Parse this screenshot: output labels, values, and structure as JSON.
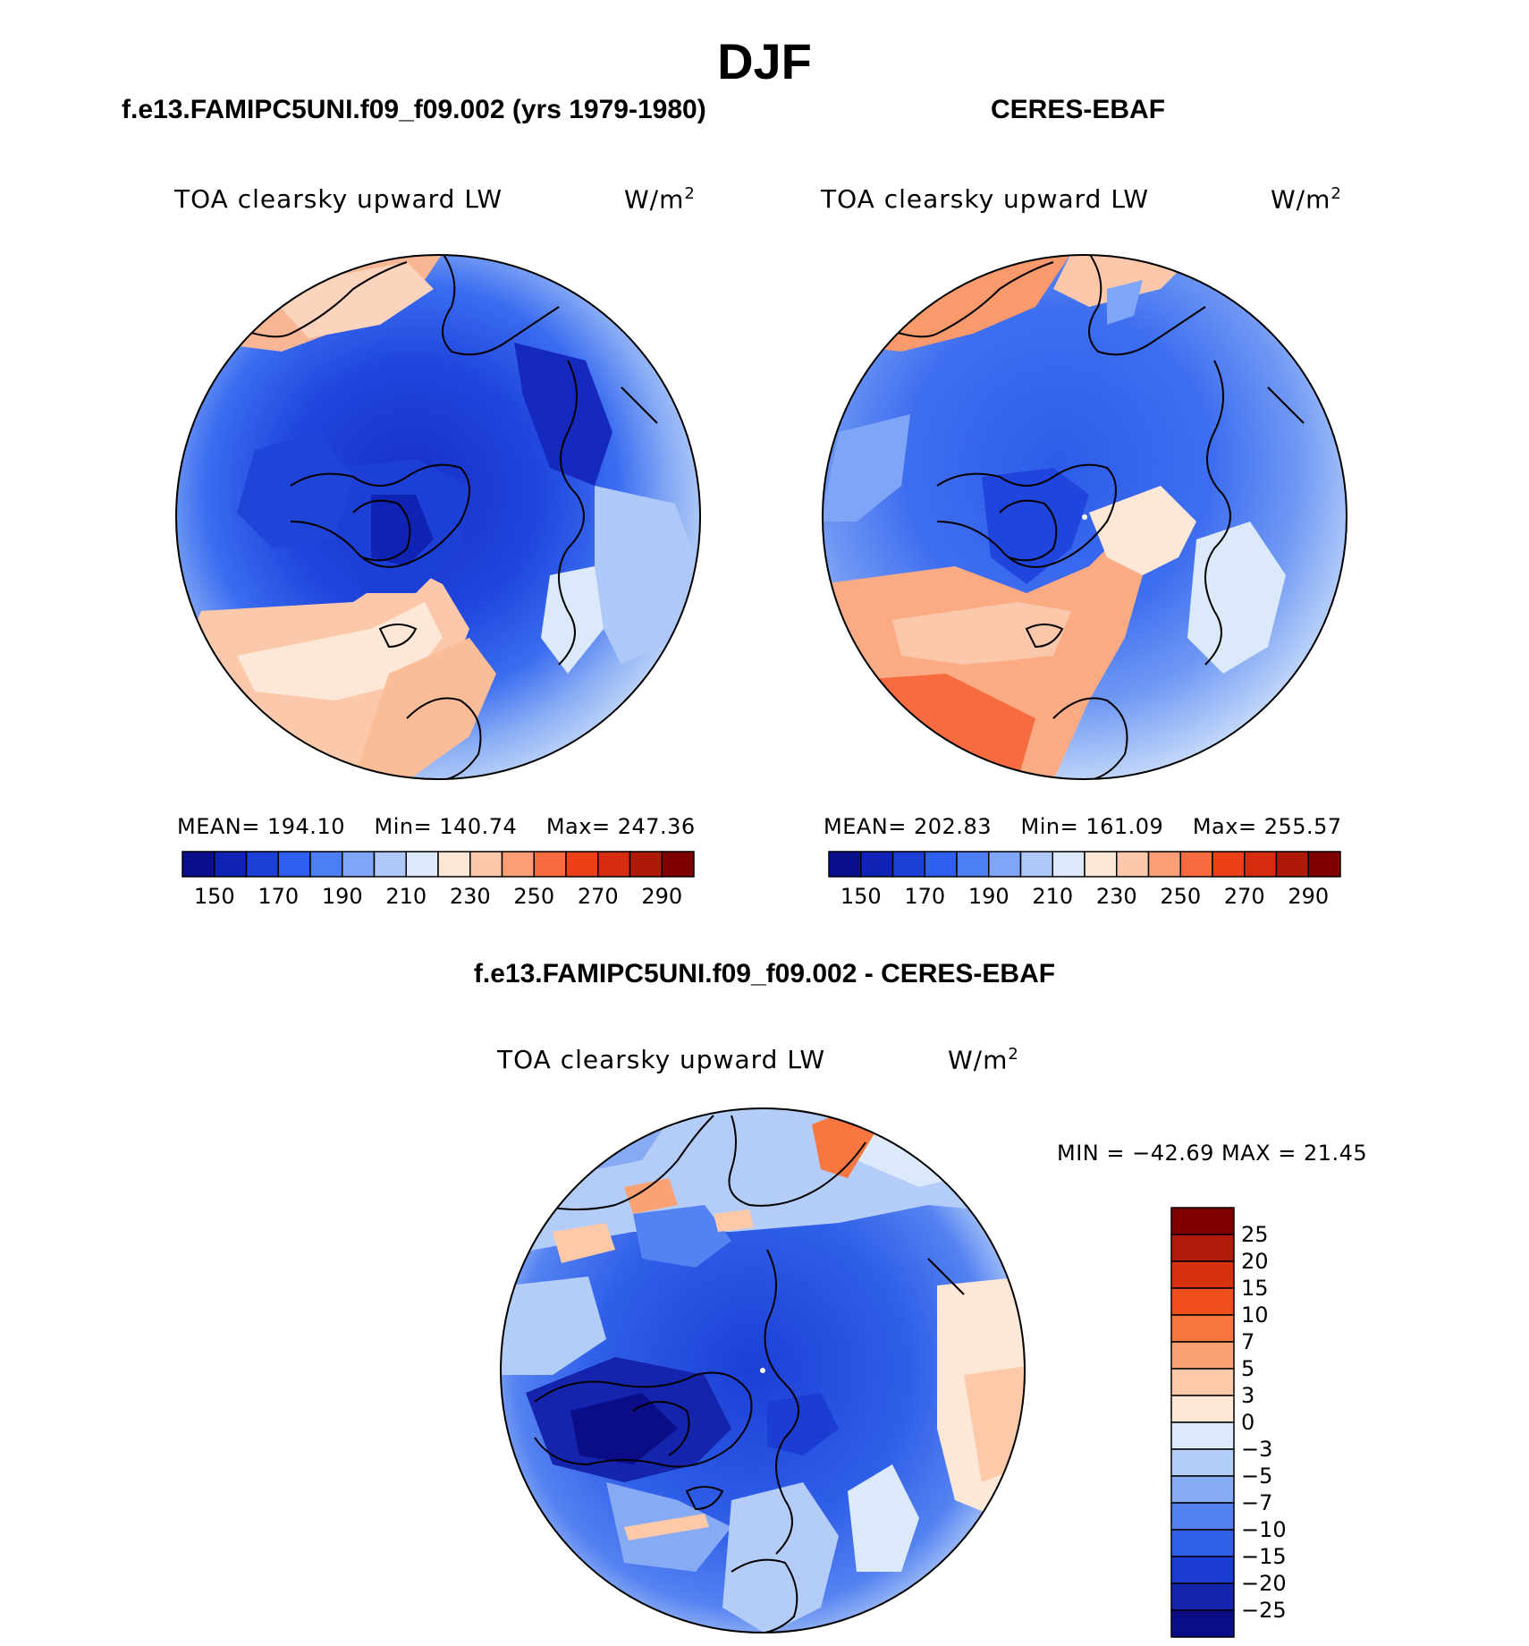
{
  "figure": {
    "season": "DJF",
    "left_title": "f.e13.FAMIPC5UNI.f09_f09.002 (yrs 1979-1980)",
    "right_title": "CERES-EBAF",
    "diff_title": "f.e13.FAMIPC5UNI.f09_f09.002 - CERES-EBAF"
  },
  "panels": [
    {
      "variable": "TOA clearsky upward LW",
      "units_base": "W/m",
      "units_exp": "2",
      "mean_label": "MEAN=",
      "mean_value": "194.10",
      "min_label": "Min=",
      "min_value": "140.74",
      "max_label": "Max=",
      "max_value": "247.36"
    },
    {
      "variable": "TOA clearsky upward LW",
      "units_base": "W/m",
      "units_exp": "2",
      "mean_label": "MEAN=",
      "mean_value": "202.83",
      "min_label": "Min=",
      "min_value": "161.09",
      "max_label": "Max=",
      "max_value": "255.57"
    }
  ],
  "diff_panel": {
    "variable": "TOA clearsky upward LW",
    "units_base": "W/m",
    "units_exp": "2",
    "minmax_text": "MIN = −42.69 MAX =   21.45"
  },
  "colorbar_abs": {
    "tick_labels": [
      "150",
      "170",
      "190",
      "210",
      "230",
      "250",
      "270",
      "290"
    ],
    "colors": [
      "#0a0d8c",
      "#0f24b4",
      "#1c3fd6",
      "#2f5fef",
      "#4c7ff4",
      "#7fa5f6",
      "#aec8f8",
      "#dbe9fb",
      "#fde8d8",
      "#fcc8ab",
      "#fa9e76",
      "#f76b40",
      "#ee4018",
      "#d52b0f",
      "#ad1a0a",
      "#800000"
    ]
  },
  "colorbar_diff": {
    "levels": [
      "25",
      "20",
      "15",
      "10",
      "7",
      "5",
      "3",
      "0",
      "−3",
      "−5",
      "−7",
      "−10",
      "−15",
      "−20",
      "−25"
    ],
    "colors": [
      "#800000",
      "#b01a0a",
      "#d7320f",
      "#f04f1c",
      "#f8763f",
      "#fba274",
      "#fdc9a8",
      "#fde8d8",
      "#dbe9fb",
      "#b4cdf8",
      "#87aaf5",
      "#5482f1",
      "#2f5fe8",
      "#1c3dd3",
      "#1424ad",
      "#0a0d86"
    ]
  },
  "chart_data": {
    "type": "heatmap",
    "projection": "north-polar-stereographic",
    "panels": [
      {
        "name": "f.e13.FAMIPC5UNI.f09_f09.002 (yrs 1979-1980)",
        "mean": 194.1,
        "min": 140.74,
        "max": 247.36,
        "units": "W/m2",
        "levels": [
          150,
          160,
          170,
          180,
          190,
          200,
          210,
          220,
          230,
          240,
          250,
          260,
          270,
          280,
          290
        ]
      },
      {
        "name": "CERES-EBAF",
        "mean": 202.83,
        "min": 161.09,
        "max": 255.57,
        "units": "W/m2",
        "levels": [
          150,
          160,
          170,
          180,
          190,
          200,
          210,
          220,
          230,
          240,
          250,
          260,
          270,
          280,
          290
        ]
      },
      {
        "name": "f.e13.FAMIPC5UNI.f09_f09.002 - CERES-EBAF",
        "min": -42.69,
        "max": 21.45,
        "units": "W/m2",
        "levels": [
          -25,
          -20,
          -15,
          -10,
          -7,
          -5,
          -3,
          0,
          3,
          5,
          7,
          10,
          15,
          20,
          25
        ]
      }
    ]
  }
}
